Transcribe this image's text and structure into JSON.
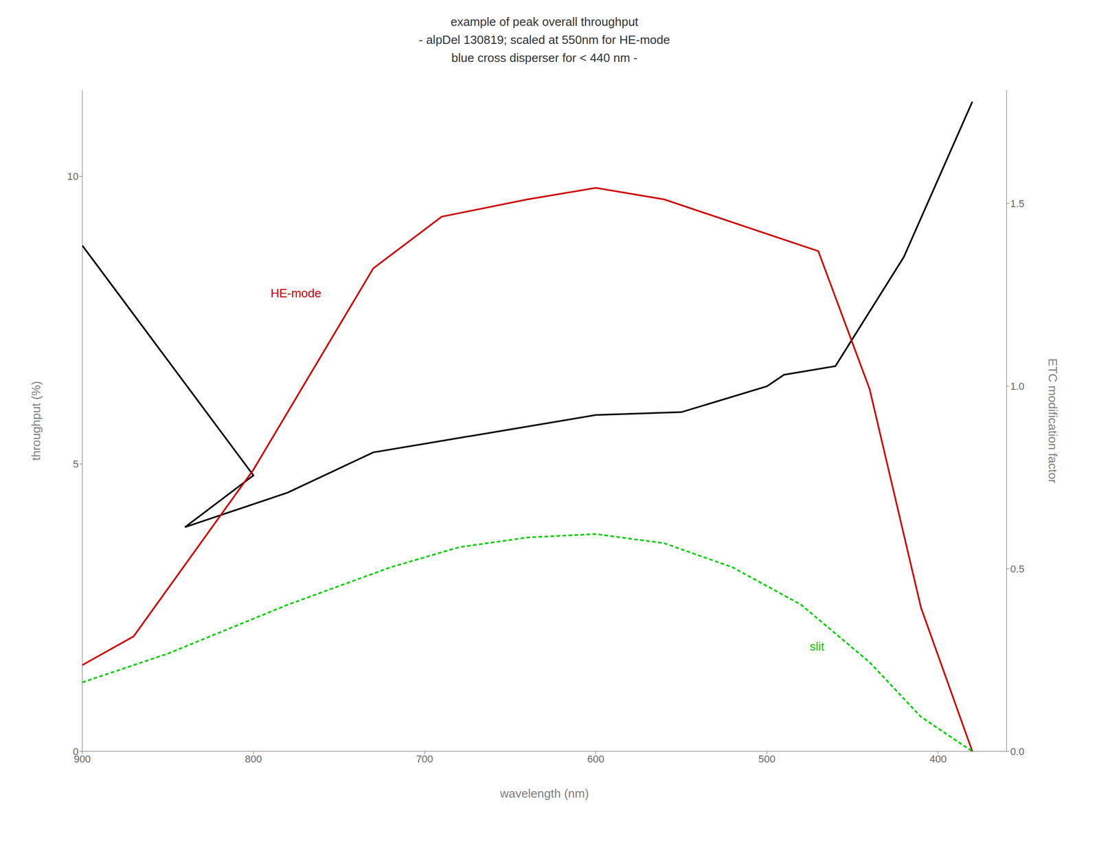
{
  "chart_data": {
    "type": "line",
    "title": "example of peak overall throughput\n- alpDel 130819; scaled at 550nm for HE-mode\nblue cross disperser for < 440 nm -",
    "xlabel": "wavelength (nm)",
    "ylabel": "throughput (%)",
    "y2label": "ETC modification factor",
    "xlim": [
      900,
      360
    ],
    "ylim": [
      0,
      11.5
    ],
    "y2lim": [
      0,
      1.81
    ],
    "xticks": [
      900,
      800,
      700,
      600,
      500,
      400
    ],
    "yticks": [
      0,
      5,
      10
    ],
    "y2ticks": [
      {
        "value": 0,
        "label": "0.0"
      },
      0.5,
      {
        "value": 1.0,
        "label": "1.0"
      },
      1.5
    ],
    "grid": false,
    "series": [
      {
        "color": "#000000",
        "line_style": "solid",
        "x": [
          900,
          800,
          840,
          780,
          730,
          700,
          650,
          600,
          550,
          500,
          490,
          460,
          420,
          380
        ],
        "values": [
          8.8,
          4.8,
          3.9,
          4.5,
          5.2,
          5.35,
          5.6,
          5.85,
          5.9,
          6.35,
          6.55,
          6.7,
          8.6,
          11.3
        ]
      },
      {
        "color": "#cc0000",
        "line_style": "solid",
        "x": [
          900,
          870,
          800,
          730,
          690,
          640,
          600,
          560,
          470,
          440,
          410,
          380
        ],
        "values": [
          1.5,
          2.0,
          4.9,
          8.4,
          9.3,
          9.6,
          9.8,
          9.6,
          8.7,
          6.3,
          2.5,
          0.0
        ]
      },
      {
        "color": "#00cc00",
        "line_style": "dashed",
        "x": [
          900,
          850,
          780,
          720,
          680,
          640,
          600,
          560,
          520,
          480,
          440,
          410,
          380
        ],
        "values": [
          1.2,
          1.7,
          2.55,
          3.2,
          3.55,
          3.72,
          3.78,
          3.62,
          3.2,
          2.55,
          1.55,
          0.6,
          0.0
        ]
      }
    ],
    "annotations": [
      {
        "text": "HE-mode",
        "x": 790,
        "y": 7.9,
        "color": "#cc0000"
      },
      {
        "text": "slit",
        "x": 475,
        "y": 1.75,
        "color": "#00cc00"
      }
    ]
  }
}
